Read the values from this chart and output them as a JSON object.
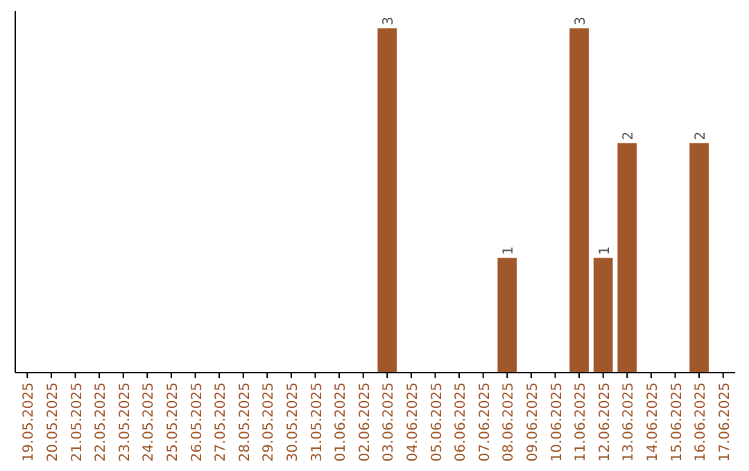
{
  "chart_data": {
    "type": "bar",
    "categories": [
      "19.05.2025",
      "20.05.2025",
      "21.05.2025",
      "22.05.2025",
      "23.05.2025",
      "24.05.2025",
      "25.05.2025",
      "26.05.2025",
      "27.05.2025",
      "28.05.2025",
      "29.05.2025",
      "30.05.2025",
      "31.05.2025",
      "01.06.2025",
      "02.06.2025",
      "03.06.2025",
      "04.06.2025",
      "05.06.2025",
      "06.06.2025",
      "07.06.2025",
      "08.06.2025",
      "09.06.2025",
      "10.06.2025",
      "11.06.2025",
      "12.06.2025",
      "13.06.2025",
      "14.06.2025",
      "15.06.2025",
      "16.06.2025",
      "17.06.2025"
    ],
    "values": [
      null,
      null,
      null,
      null,
      null,
      null,
      null,
      null,
      null,
      null,
      null,
      null,
      null,
      null,
      null,
      3,
      null,
      null,
      null,
      null,
      1,
      null,
      null,
      3,
      1,
      2,
      null,
      null,
      2,
      null
    ],
    "color": "#a0582a",
    "ylim": [
      0,
      3.15
    ],
    "data_labels": true,
    "tick_labels": "x"
  }
}
